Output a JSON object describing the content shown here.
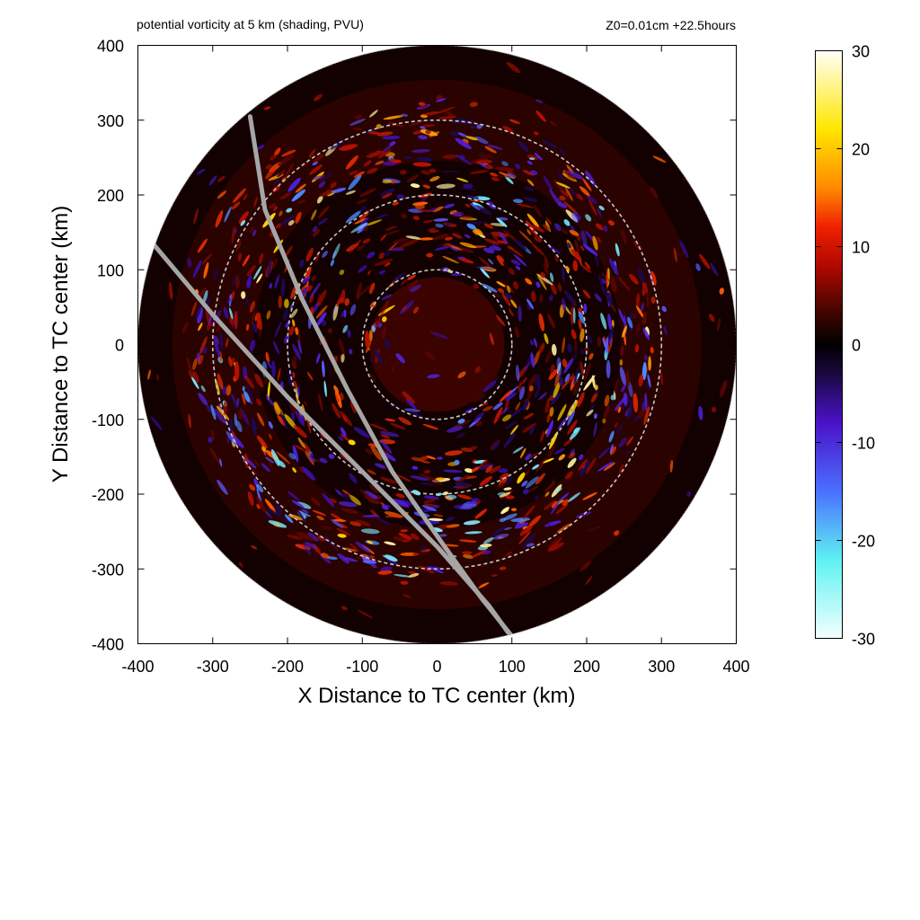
{
  "header": {
    "left": "potential vorticity at 5 km (shading, PVU)",
    "right": "Z0=0.01cm  +22.5hours"
  },
  "chart_data": {
    "type": "heatmap",
    "title": "potential vorticity at 5 km (shading, PVU)",
    "subtitle": "Z0=0.01cm  +22.5hours",
    "xlabel": "X Distance to TC center (km)",
    "ylabel": "Y Distance to TC center (km)",
    "xlim": [
      -400,
      400
    ],
    "ylim": [
      -400,
      400
    ],
    "x_ticks": [
      -400,
      -300,
      -200,
      -100,
      0,
      100,
      200,
      300,
      400
    ],
    "y_ticks": [
      -400,
      -300,
      -200,
      -100,
      0,
      100,
      200,
      300,
      400
    ],
    "x_tick_labels": [
      "-400",
      "-300",
      "-200",
      "-100",
      "0",
      "100",
      "200",
      "300",
      "400"
    ],
    "y_tick_labels": [
      "-400",
      "-300",
      "-200",
      "-100",
      "0",
      "100",
      "200",
      "300",
      "400"
    ],
    "domain_radius_km": 400,
    "range_rings_km": [
      100,
      200,
      300
    ],
    "colorbar": {
      "min": -30,
      "max": 30,
      "ticks": [
        30,
        20,
        10,
        0,
        -10,
        -20,
        -30
      ],
      "tick_labels": [
        "30",
        "20",
        "10",
        "0",
        "-10",
        "-20",
        "-30"
      ],
      "colors": [
        {
          "value": -30,
          "color": "#f4ffff"
        },
        {
          "value": -22,
          "color": "#5ff2f2"
        },
        {
          "value": -15,
          "color": "#4a70ff"
        },
        {
          "value": -8,
          "color": "#4a12c8"
        },
        {
          "value": -3,
          "color": "#1a0840"
        },
        {
          "value": 0,
          "color": "#000000"
        },
        {
          "value": 3,
          "color": "#3a0500"
        },
        {
          "value": 8,
          "color": "#b00800"
        },
        {
          "value": 12,
          "color": "#f02000"
        },
        {
          "value": 16,
          "color": "#ff8a00"
        },
        {
          "value": 22,
          "color": "#ffe600"
        },
        {
          "value": 30,
          "color": "#fffff8"
        }
      ]
    },
    "tracks": [
      {
        "points": [
          [
            -250,
            305
          ],
          [
            -230,
            180
          ],
          [
            -180,
            60
          ],
          [
            -120,
            -60
          ],
          [
            -60,
            -170
          ],
          [
            10,
            -270
          ],
          [
            60,
            -340
          ],
          [
            100,
            -390
          ]
        ]
      },
      {
        "points": [
          [
            -380,
            135
          ],
          [
            -300,
            40
          ],
          [
            -200,
            -70
          ],
          [
            -100,
            -170
          ],
          [
            0,
            -270
          ],
          [
            70,
            -350
          ],
          [
            95,
            -385
          ]
        ]
      }
    ]
  },
  "colors": {
    "background": "#ffffff",
    "plot_disk_base": "#140101",
    "ring": "#c8c8c8",
    "track": "#a6a6a6"
  }
}
